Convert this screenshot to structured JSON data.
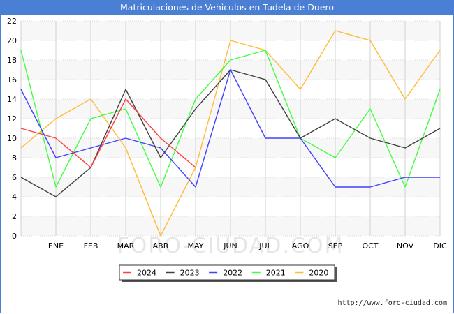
{
  "title": "Matriculaciones de Vehiculos en Tudela de Duero",
  "watermark": "FORO-CIUDAD.COM",
  "footer_url": "http://www.foro-ciudad.com",
  "chart_data": {
    "type": "line",
    "title": "Matriculaciones de Vehiculos en Tudela de Duero",
    "categories": [
      "",
      "ENE",
      "FEB",
      "MAR",
      "ABR",
      "MAY",
      "JUN",
      "JUL",
      "AGO",
      "SEP",
      "OCT",
      "NOV",
      "DIC"
    ],
    "ylim": [
      0,
      22
    ],
    "yticks": [
      0,
      2,
      4,
      6,
      8,
      10,
      12,
      14,
      16,
      18,
      20,
      22
    ],
    "grid": true,
    "legend_position": "bottom-center",
    "series": [
      {
        "name": "2024",
        "color": "#ff4040",
        "values": [
          11,
          10,
          7,
          14,
          10,
          7,
          null,
          null,
          null,
          null,
          null,
          null,
          null
        ]
      },
      {
        "name": "2023",
        "color": "#404040",
        "values": [
          6,
          4,
          7,
          15,
          8,
          13,
          17,
          16,
          10,
          12,
          10,
          9,
          11
        ]
      },
      {
        "name": "2022",
        "color": "#4040ff",
        "values": [
          15,
          8,
          9,
          10,
          9,
          5,
          17,
          10,
          10,
          5,
          5,
          6,
          6
        ]
      },
      {
        "name": "2021",
        "color": "#40ff40",
        "values": [
          19,
          5,
          12,
          13,
          5,
          14,
          18,
          19,
          10,
          8,
          13,
          5,
          15
        ]
      },
      {
        "name": "2020",
        "color": "#ffbb33",
        "values": [
          9,
          12,
          14,
          9,
          0,
          7,
          20,
          19,
          15,
          21,
          20,
          14,
          19
        ]
      }
    ]
  }
}
